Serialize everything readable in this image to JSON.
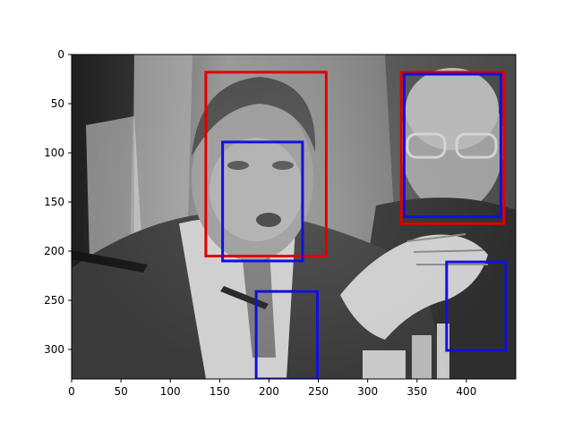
{
  "chart_data": {
    "type": "image",
    "xlim": [
      0,
      450
    ],
    "ylim": [
      0,
      330
    ],
    "y_inverted": true,
    "xticks": [
      0,
      50,
      100,
      150,
      200,
      250,
      300,
      350,
      400
    ],
    "yticks": [
      0,
      50,
      100,
      150,
      200,
      250,
      300
    ],
    "grid": false,
    "title": "",
    "xlabel": "",
    "ylabel": "",
    "image_content": "grayscale press photo",
    "colors": {
      "red": "#e00000",
      "blue": "#1010e0"
    },
    "boxes": [
      {
        "color": "red",
        "x0": 136,
        "y0": 18,
        "x1": 258,
        "y1": 205
      },
      {
        "color": "blue",
        "x0": 153,
        "y0": 89,
        "x1": 234,
        "y1": 210
      },
      {
        "color": "blue",
        "x0": 187,
        "y0": 241,
        "x1": 249,
        "y1": 330
      },
      {
        "color": "red",
        "x0": 334,
        "y0": 18,
        "x1": 438,
        "y1": 172
      },
      {
        "color": "blue",
        "x0": 337,
        "y0": 20,
        "x1": 435,
        "y1": 165
      },
      {
        "color": "blue",
        "x0": 380,
        "y0": 211,
        "x1": 440,
        "y1": 301
      }
    ]
  }
}
